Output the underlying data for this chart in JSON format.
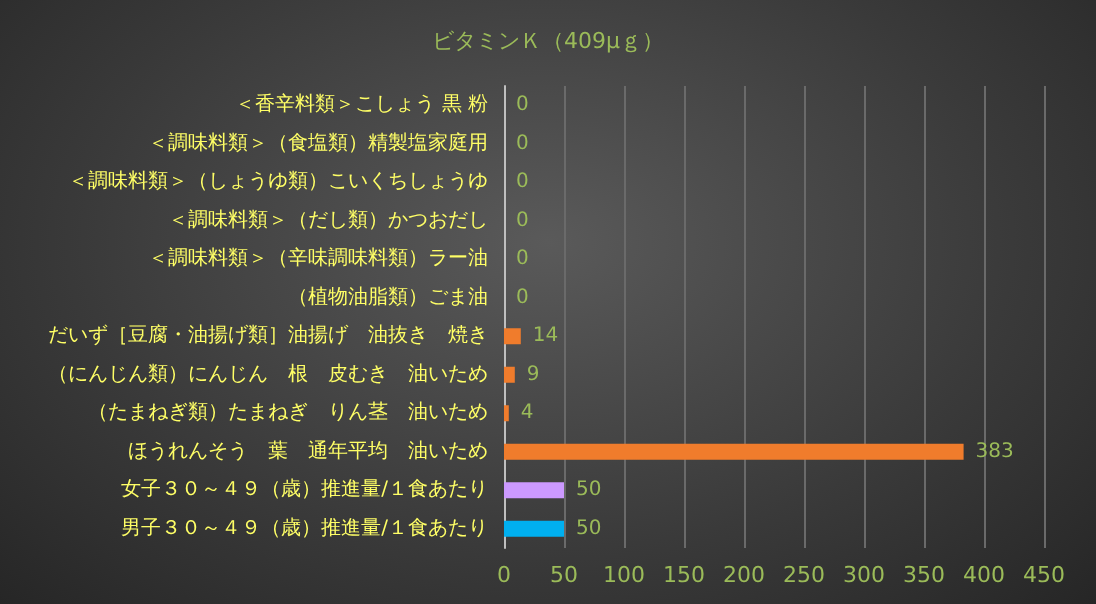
{
  "chart_data": {
    "type": "bar",
    "orientation": "horizontal",
    "title": "ビタミンＫ（409μｇ）",
    "categories": [
      "＜香辛料類＞こしょう 黒 粉",
      "＜調味料類＞（食塩類）精製塩家庭用",
      "＜調味料類＞（しょうゆ類）こいくちしょうゆ",
      "＜調味料類＞（だし類）かつおだし",
      "＜調味料類＞（辛味調味料類）ラー油",
      "（植物油脂類）ごま油",
      "だいず［豆腐・油揚げ類］油揚げ　油抜き　焼き",
      "（にんじん類）にんじん　根　皮むき　油いため",
      "（たまねぎ類）たまねぎ　りん茎　油いため",
      "ほうれんそう　葉　通年平均　油いため",
      "女子３０～４９（歳）推進量/１食あたり",
      "男子３０～４９（歳）推進量/１食あたり"
    ],
    "values": [
      0,
      0,
      0,
      0,
      0,
      0,
      14,
      9,
      4,
      383,
      50,
      50
    ],
    "colors": [
      "#f07c2c",
      "#f07c2c",
      "#f07c2c",
      "#f07c2c",
      "#f07c2c",
      "#f07c2c",
      "#f07c2c",
      "#f07c2c",
      "#f07c2c",
      "#f07c2c",
      "#cc99ff",
      "#00b0f0"
    ],
    "xlim": [
      0,
      450
    ],
    "xticks": [
      0,
      50,
      100,
      150,
      200,
      250,
      300,
      350,
      400,
      450
    ],
    "grid": "x",
    "data_labels": true
  }
}
